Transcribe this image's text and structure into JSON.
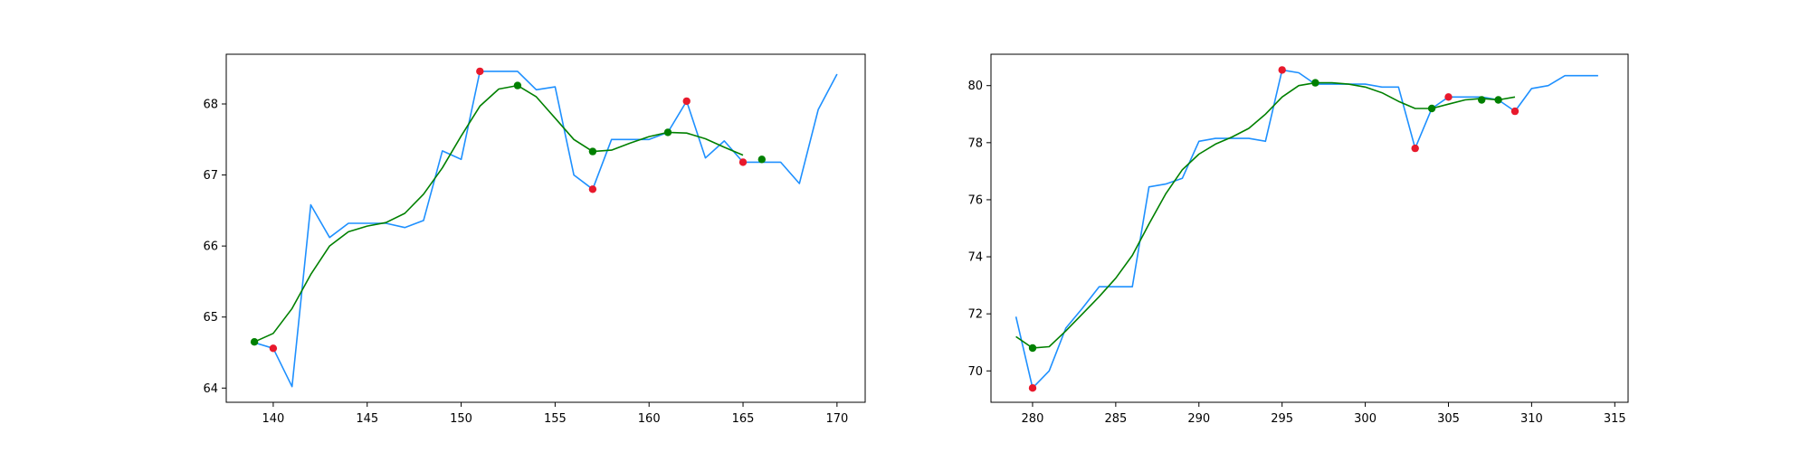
{
  "colors": {
    "raw_line": "#1e90ff",
    "smooth_line": "#008000",
    "red_marker": "#e8192c",
    "green_marker": "#008000",
    "background": "#ffffff"
  },
  "chart_data": [
    {
      "type": "line",
      "title": "",
      "xlabel": "",
      "ylabel": "",
      "xlim": [
        137.5,
        171.5
      ],
      "ylim": [
        63.8,
        68.7
      ],
      "xticks": [
        140,
        145,
        150,
        155,
        160,
        165,
        170
      ],
      "yticks": [
        64,
        65,
        66,
        67,
        68
      ],
      "grid": false,
      "legend": "none",
      "series": [
        {
          "role": "raw",
          "x": [
            139,
            140,
            141,
            142,
            143,
            144,
            145,
            146,
            147,
            148,
            149,
            150,
            151,
            152,
            153,
            154,
            155,
            156,
            157,
            158,
            159,
            160,
            161,
            162,
            163,
            164,
            165,
            166,
            167,
            168,
            169,
            170
          ],
          "y": [
            64.64,
            64.56,
            64.02,
            66.58,
            66.12,
            66.32,
            66.32,
            66.32,
            66.26,
            66.36,
            67.34,
            67.22,
            68.46,
            68.46,
            68.46,
            68.2,
            68.24,
            67.0,
            66.8,
            67.5,
            67.5,
            67.5,
            67.6,
            68.04,
            67.24,
            67.48,
            67.18,
            67.18,
            67.18,
            66.88,
            67.92,
            68.42
          ]
        },
        {
          "role": "smoothed",
          "x": [
            139,
            140,
            141,
            142,
            143,
            144,
            145,
            146,
            147,
            148,
            149,
            150,
            151,
            152,
            153,
            154,
            155,
            156,
            157,
            158,
            159,
            160,
            161,
            162,
            163,
            164,
            165
          ],
          "y": [
            64.65,
            64.77,
            65.12,
            65.6,
            66.0,
            66.2,
            66.28,
            66.33,
            66.46,
            66.73,
            67.1,
            67.55,
            67.97,
            68.21,
            68.26,
            68.1,
            67.8,
            67.5,
            67.33,
            67.35,
            67.45,
            67.54,
            67.6,
            67.59,
            67.51,
            67.39,
            67.28
          ]
        },
        {
          "role": "red-markers",
          "x": [
            140,
            151,
            157,
            162,
            165
          ],
          "y": [
            64.56,
            68.46,
            66.8,
            68.04,
            67.18
          ]
        },
        {
          "role": "green-markers",
          "x": [
            139,
            153,
            157,
            161,
            166
          ],
          "y": [
            64.65,
            68.26,
            67.33,
            67.6,
            67.22
          ]
        }
      ]
    },
    {
      "type": "line",
      "title": "",
      "xlabel": "",
      "ylabel": "",
      "xlim": [
        277.5,
        315.8
      ],
      "ylim": [
        68.9,
        81.1
      ],
      "xticks": [
        280,
        285,
        290,
        295,
        300,
        305,
        310,
        315
      ],
      "yticks": [
        70,
        72,
        74,
        76,
        78,
        80
      ],
      "grid": false,
      "legend": "none",
      "series": [
        {
          "role": "raw",
          "x": [
            279,
            280,
            281,
            282,
            283,
            284,
            285,
            286,
            287,
            288,
            289,
            290,
            291,
            292,
            293,
            294,
            295,
            296,
            297,
            298,
            299,
            300,
            301,
            302,
            303,
            304,
            305,
            306,
            307,
            308,
            309,
            310,
            311,
            312,
            313,
            314
          ],
          "y": [
            71.9,
            69.4,
            70.0,
            71.5,
            72.2,
            72.95,
            72.95,
            72.95,
            76.45,
            76.55,
            76.75,
            78.05,
            78.15,
            78.15,
            78.15,
            78.05,
            80.55,
            80.45,
            80.05,
            80.05,
            80.05,
            80.05,
            79.95,
            79.95,
            77.8,
            79.2,
            79.6,
            79.6,
            79.6,
            79.5,
            79.1,
            79.9,
            80.0,
            80.35,
            80.35,
            80.35
          ]
        },
        {
          "role": "smoothed",
          "x": [
            279,
            280,
            281,
            282,
            283,
            284,
            285,
            286,
            287,
            288,
            289,
            290,
            291,
            292,
            293,
            294,
            295,
            296,
            297,
            298,
            299,
            300,
            301,
            302,
            303,
            304,
            305,
            306,
            307,
            308,
            309
          ],
          "y": [
            71.2,
            70.8,
            70.85,
            71.4,
            72.0,
            72.6,
            73.25,
            74.05,
            75.15,
            76.2,
            77.05,
            77.6,
            77.95,
            78.2,
            78.5,
            79.0,
            79.6,
            80.0,
            80.1,
            80.1,
            80.05,
            79.95,
            79.75,
            79.45,
            79.2,
            79.2,
            79.35,
            79.5,
            79.55,
            79.5,
            79.6
          ]
        },
        {
          "role": "red-markers",
          "x": [
            280,
            295,
            303,
            305,
            309
          ],
          "y": [
            69.4,
            80.55,
            77.8,
            79.6,
            79.1
          ]
        },
        {
          "role": "green-markers",
          "x": [
            280,
            297,
            304,
            307,
            308
          ],
          "y": [
            70.8,
            80.1,
            79.2,
            79.5,
            79.5
          ]
        }
      ]
    }
  ]
}
